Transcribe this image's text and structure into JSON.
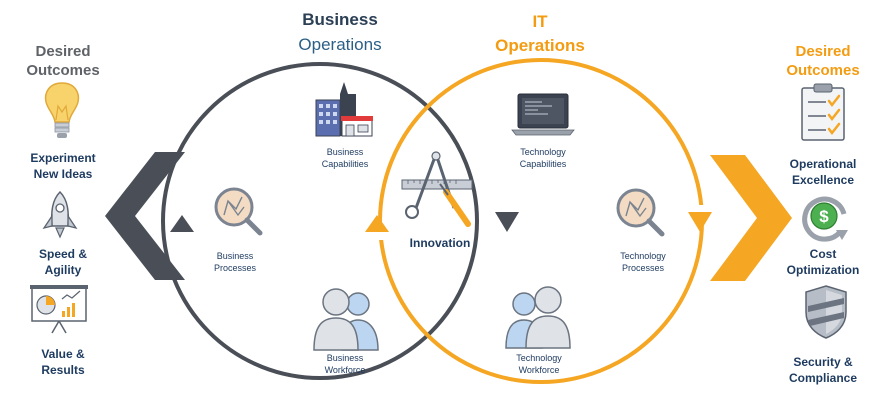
{
  "left": {
    "title": [
      "Desired",
      "Outcomes"
    ],
    "items": [
      {
        "icon": "lightbulb-icon",
        "label": [
          "Experiment",
          "New Ideas"
        ]
      },
      {
        "icon": "rocket-icon",
        "label": [
          "Speed &",
          "Agility"
        ]
      },
      {
        "icon": "presentation-chart-icon",
        "label": [
          "Value &",
          "Results"
        ]
      }
    ]
  },
  "business": {
    "title_line1": "Business",
    "title_line2": "Operations",
    "capabilities": [
      "Business",
      "Capabilities"
    ],
    "processes": [
      "Business",
      "Processes"
    ],
    "workforce": [
      "Business",
      "Workforce"
    ]
  },
  "it": {
    "title_line1": "IT",
    "title_line2": "Operations",
    "capabilities": [
      "Technology",
      "Capabilities"
    ],
    "processes": [
      "Technology",
      "Processes"
    ],
    "workforce": [
      "Technology",
      "Workforce"
    ]
  },
  "center": {
    "label": "Innovation"
  },
  "right": {
    "title": [
      "Desired",
      "Outcomes"
    ],
    "items": [
      {
        "icon": "checklist-icon",
        "label": [
          "Operational",
          "Excellence"
        ]
      },
      {
        "icon": "dollar-cycle-icon",
        "label": [
          "Cost",
          "Optimization"
        ]
      },
      {
        "icon": "shield-icon",
        "label": [
          "Security &",
          "Compliance"
        ]
      }
    ]
  },
  "colors": {
    "business_ring": "#4a4f57",
    "it_ring": "#f5a623",
    "left_chevron": "#4a4f57",
    "right_chevron": "#f5a623"
  }
}
